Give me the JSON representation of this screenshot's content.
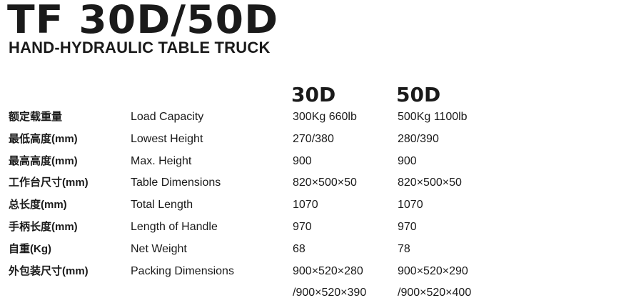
{
  "header": {
    "title": "TF 30D/50D",
    "subtitle": "HAND-HYDRAULIC TABLE TRUCK"
  },
  "models": [
    "30D",
    "50D"
  ],
  "rows": [
    {
      "cn": "额定载重量",
      "en": "Load Capacity",
      "v30": "300Kg  660lb",
      "v50": "500Kg  1100lb"
    },
    {
      "cn": "最低高度(mm)",
      "en": "Lowest Height",
      "v30": "270/380",
      "v50": "280/390"
    },
    {
      "cn": "最高高度(mm)",
      "en": "Max. Height",
      "v30": "900",
      "v50": "900"
    },
    {
      "cn": "工作台尺寸(mm)",
      "en": "Table Dimensions",
      "v30": "820×500×50",
      "v50": "820×500×50"
    },
    {
      "cn": "总长度(mm)",
      "en": "Total Length",
      "v30": "1070",
      "v50": "1070"
    },
    {
      "cn": "手柄长度(mm)",
      "en": "Length of Handle",
      "v30": "970",
      "v50": "970"
    },
    {
      "cn": "自重(Kg)",
      "en": "Net Weight",
      "v30": "68",
      "v50": "78"
    },
    {
      "cn": "外包装尺寸(mm)",
      "en": "Packing Dimensions",
      "v30": "900×520×280",
      "v50": "900×520×290"
    },
    {
      "cn": "",
      "en": "",
      "v30": "/900×520×390",
      "v50": "/900×520×400"
    }
  ]
}
